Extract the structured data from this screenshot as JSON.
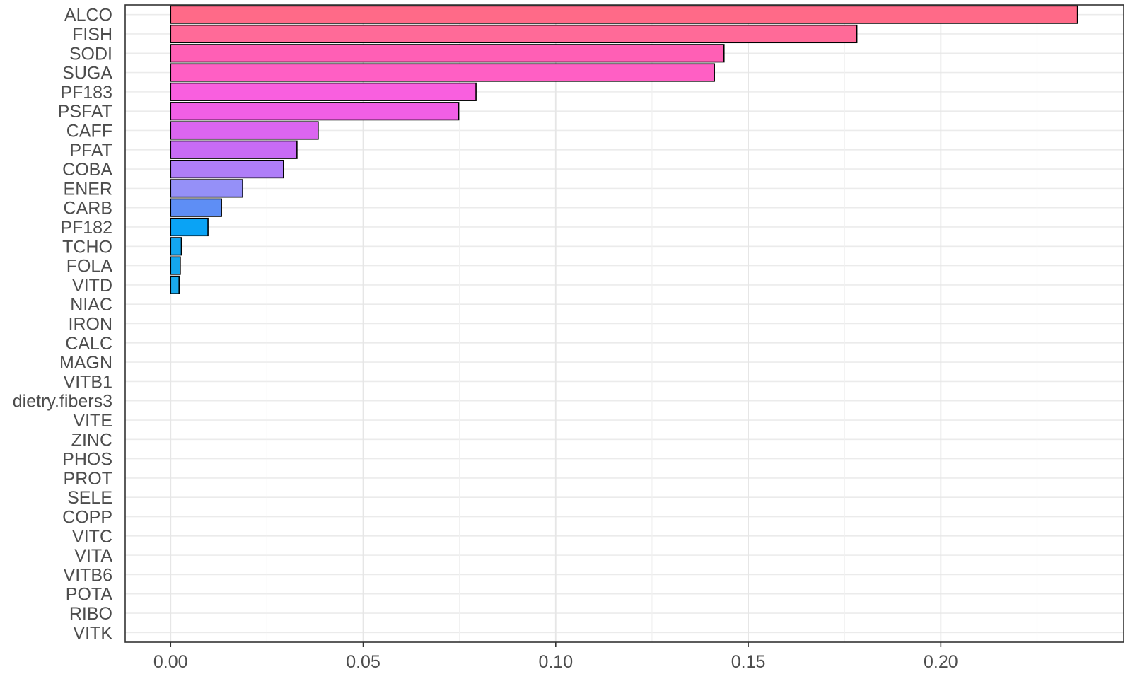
{
  "chart_data": {
    "type": "bar",
    "orientation": "horizontal",
    "categories": [
      "ALCO",
      "FISH",
      "SODI",
      "SUGA",
      "PF183",
      "PSFAT",
      "CAFF",
      "PFAT",
      "COBA",
      "ENER",
      "CARB",
      "PF182",
      "TCHO",
      "FOLA",
      "VITD",
      "NIAC",
      "IRON",
      "CALC",
      "MAGN",
      "VITB1",
      "dietry.fibers3",
      "VITE",
      "ZINC",
      "PHOS",
      "PROT",
      "SELE",
      "COPP",
      "VITC",
      "VITA",
      "VITB6",
      "POTA",
      "RIBO",
      "VITK"
    ],
    "values": [
      0.2355,
      0.1782,
      0.1437,
      0.1412,
      0.0793,
      0.0748,
      0.0383,
      0.0328,
      0.0293,
      0.0187,
      0.0132,
      0.0097,
      0.0028,
      0.0025,
      0.0022,
      0,
      0,
      0,
      0,
      0,
      0,
      0,
      0,
      0,
      0,
      0,
      0,
      0,
      0,
      0,
      0,
      0,
      0
    ],
    "colors": [
      "#FF6A88",
      "#FF6A98",
      "#FF5FB5",
      "#FF5FC4",
      "#F95FDF",
      "#F15FE5",
      "#DB65F0",
      "#C86BF5",
      "#AF7EF8",
      "#9590F8",
      "#5E8EF5",
      "#0AA3F5",
      "#13A6F0",
      "#14A6EE",
      "#1AA8EA"
    ],
    "xlim": [
      -0.0118,
      0.2475
    ],
    "xticks": [
      0.0,
      0.05,
      0.1,
      0.15,
      0.2
    ],
    "xtick_labels": [
      "0.00",
      "0.05",
      "0.10",
      "0.15",
      "0.20"
    ],
    "grid": true,
    "xlabel": "",
    "ylabel": "",
    "title": ""
  }
}
